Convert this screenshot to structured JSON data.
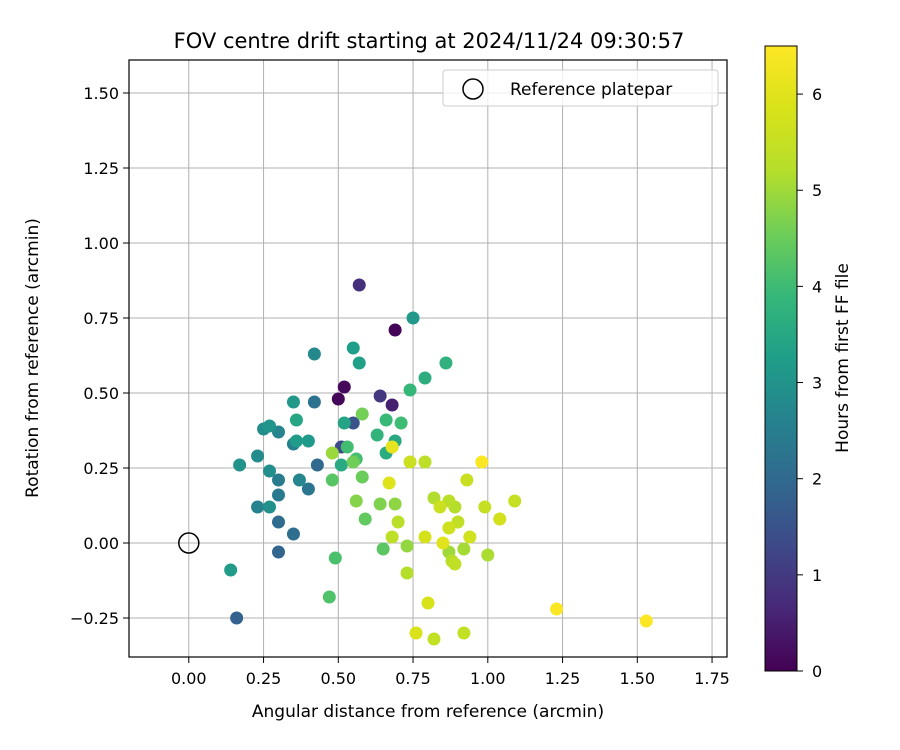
{
  "chart_data": {
    "type": "scatter",
    "title": "FOV centre drift starting at 2024/11/24 09:30:57",
    "xlabel": "Angular distance from reference (arcmin)",
    "ylabel": "Rotation from reference (arcmin)",
    "xlim": [
      -0.2,
      1.8
    ],
    "ylim": [
      -0.38,
      1.61
    ],
    "xticks": [
      0.0,
      0.25,
      0.5,
      0.75,
      1.0,
      1.25,
      1.5,
      1.75
    ],
    "xtick_labels": [
      "0.00",
      "0.25",
      "0.50",
      "0.75",
      "1.00",
      "1.25",
      "1.50",
      "1.75"
    ],
    "yticks": [
      -0.25,
      0.0,
      0.25,
      0.5,
      0.75,
      1.0,
      1.25,
      1.5
    ],
    "ytick_labels": [
      "−0.25",
      "0.00",
      "0.25",
      "0.50",
      "0.75",
      "1.00",
      "1.25",
      "1.50"
    ],
    "grid": true,
    "legend": {
      "position": "top-right",
      "entries": [
        "Reference platepar"
      ]
    },
    "reference_point": {
      "x": 0.0,
      "y": 0.0,
      "label": "Reference platepar"
    },
    "colorbar": {
      "label": "Hours from first FF file",
      "colormap": "viridis",
      "range": [
        0,
        6.5
      ],
      "ticks": [
        0,
        1,
        2,
        3,
        4,
        5,
        6
      ],
      "tick_labels": [
        "0",
        "1",
        "2",
        "3",
        "4",
        "5",
        "6"
      ]
    },
    "points": [
      {
        "x": 0.69,
        "y": 0.71,
        "c": 0.05
      },
      {
        "x": 0.5,
        "y": 0.48,
        "c": 0.08
      },
      {
        "x": 0.52,
        "y": 0.52,
        "c": 0.15
      },
      {
        "x": 0.68,
        "y": 0.46,
        "c": 0.5
      },
      {
        "x": 0.57,
        "y": 0.86,
        "c": 0.8
      },
      {
        "x": 0.64,
        "y": 0.49,
        "c": 0.95
      },
      {
        "x": 0.51,
        "y": 0.32,
        "c": 1.3
      },
      {
        "x": 0.55,
        "y": 0.4,
        "c": 1.5
      },
      {
        "x": 0.16,
        "y": -0.25,
        "c": 1.8
      },
      {
        "x": 0.3,
        "y": -0.03,
        "c": 1.9
      },
      {
        "x": 0.43,
        "y": 0.26,
        "c": 2.0
      },
      {
        "x": 0.3,
        "y": 0.07,
        "c": 2.05
      },
      {
        "x": 0.35,
        "y": 0.03,
        "c": 2.1
      },
      {
        "x": 0.42,
        "y": 0.47,
        "c": 2.2
      },
      {
        "x": 0.4,
        "y": 0.18,
        "c": 2.3
      },
      {
        "x": 0.3,
        "y": 0.16,
        "c": 2.4
      },
      {
        "x": 0.3,
        "y": 0.21,
        "c": 2.45
      },
      {
        "x": 0.35,
        "y": 0.33,
        "c": 2.55
      },
      {
        "x": 0.23,
        "y": 0.12,
        "c": 2.6
      },
      {
        "x": 0.3,
        "y": 0.37,
        "c": 2.65
      },
      {
        "x": 0.37,
        "y": 0.21,
        "c": 2.7
      },
      {
        "x": 0.42,
        "y": 0.63,
        "c": 2.75
      },
      {
        "x": 0.23,
        "y": 0.29,
        "c": 2.8
      },
      {
        "x": 0.25,
        "y": 0.38,
        "c": 2.85
      },
      {
        "x": 0.27,
        "y": 0.24,
        "c": 2.9
      },
      {
        "x": 0.27,
        "y": 0.12,
        "c": 2.95
      },
      {
        "x": 0.17,
        "y": 0.26,
        "c": 3.0
      },
      {
        "x": 0.27,
        "y": 0.39,
        "c": 3.05
      },
      {
        "x": 0.35,
        "y": 0.47,
        "c": 3.1
      },
      {
        "x": 0.4,
        "y": 0.34,
        "c": 3.15
      },
      {
        "x": 0.75,
        "y": 0.75,
        "c": 3.1
      },
      {
        "x": 0.36,
        "y": 0.34,
        "c": 3.2
      },
      {
        "x": 0.14,
        "y": -0.09,
        "c": 3.2
      },
      {
        "x": 0.55,
        "y": 0.65,
        "c": 3.25
      },
      {
        "x": 0.57,
        "y": 0.6,
        "c": 3.3
      },
      {
        "x": 0.52,
        "y": 0.4,
        "c": 3.4
      },
      {
        "x": 0.36,
        "y": 0.41,
        "c": 3.45
      },
      {
        "x": 0.69,
        "y": 0.34,
        "c": 3.5
      },
      {
        "x": 0.51,
        "y": 0.26,
        "c": 3.55
      },
      {
        "x": 0.66,
        "y": 0.3,
        "c": 3.6
      },
      {
        "x": 0.79,
        "y": 0.55,
        "c": 3.65
      },
      {
        "x": 0.86,
        "y": 0.6,
        "c": 3.75
      },
      {
        "x": 0.63,
        "y": 0.36,
        "c": 3.8
      },
      {
        "x": 0.74,
        "y": 0.51,
        "c": 3.9
      },
      {
        "x": 0.66,
        "y": 0.41,
        "c": 3.95
      },
      {
        "x": 0.71,
        "y": 0.4,
        "c": 4.0
      },
      {
        "x": 0.53,
        "y": 0.32,
        "c": 4.05
      },
      {
        "x": 0.56,
        "y": 0.28,
        "c": 4.1
      },
      {
        "x": 0.49,
        "y": -0.05,
        "c": 4.15
      },
      {
        "x": 0.47,
        "y": -0.18,
        "c": 4.2
      },
      {
        "x": 0.48,
        "y": 0.21,
        "c": 4.3
      },
      {
        "x": 0.65,
        "y": -0.02,
        "c": 4.35
      },
      {
        "x": 0.59,
        "y": 0.08,
        "c": 4.4
      },
      {
        "x": 0.58,
        "y": 0.22,
        "c": 4.5
      },
      {
        "x": 0.55,
        "y": 0.27,
        "c": 4.55
      },
      {
        "x": 0.58,
        "y": 0.43,
        "c": 4.6
      },
      {
        "x": 0.64,
        "y": 0.13,
        "c": 4.7
      },
      {
        "x": 0.56,
        "y": 0.14,
        "c": 4.75
      },
      {
        "x": 0.69,
        "y": 0.13,
        "c": 4.85
      },
      {
        "x": 0.73,
        "y": -0.01,
        "c": 4.9
      },
      {
        "x": 0.48,
        "y": 0.3,
        "c": 4.95
      },
      {
        "x": 0.87,
        "y": -0.03,
        "c": 5.0
      },
      {
        "x": 0.92,
        "y": -0.02,
        "c": 5.05
      },
      {
        "x": 1.0,
        "y": -0.04,
        "c": 5.1
      },
      {
        "x": 0.82,
        "y": 0.15,
        "c": 5.15
      },
      {
        "x": 0.89,
        "y": 0.12,
        "c": 5.2
      },
      {
        "x": 0.73,
        "y": -0.1,
        "c": 5.2
      },
      {
        "x": 0.88,
        "y": -0.06,
        "c": 5.25
      },
      {
        "x": 0.87,
        "y": 0.14,
        "c": 5.3
      },
      {
        "x": 0.7,
        "y": 0.07,
        "c": 5.3
      },
      {
        "x": 0.68,
        "y": 0.02,
        "c": 5.35
      },
      {
        "x": 0.79,
        "y": 0.27,
        "c": 5.35
      },
      {
        "x": 0.9,
        "y": 0.07,
        "c": 5.4
      },
      {
        "x": 0.89,
        "y": -0.07,
        "c": 5.4
      },
      {
        "x": 0.92,
        "y": -0.3,
        "c": 5.45
      },
      {
        "x": 0.82,
        "y": -0.32,
        "c": 5.45
      },
      {
        "x": 0.99,
        "y": 0.12,
        "c": 5.5
      },
      {
        "x": 1.09,
        "y": 0.14,
        "c": 5.5
      },
      {
        "x": 0.93,
        "y": 0.21,
        "c": 5.55
      },
      {
        "x": 0.74,
        "y": 0.27,
        "c": 5.6
      },
      {
        "x": 0.84,
        "y": 0.12,
        "c": 5.6
      },
      {
        "x": 0.87,
        "y": 0.05,
        "c": 5.65
      },
      {
        "x": 0.94,
        "y": 0.02,
        "c": 5.7
      },
      {
        "x": 1.04,
        "y": 0.08,
        "c": 5.75
      },
      {
        "x": 0.79,
        "y": 0.02,
        "c": 5.8
      },
      {
        "x": 0.8,
        "y": -0.2,
        "c": 5.85
      },
      {
        "x": 0.76,
        "y": -0.3,
        "c": 5.9
      },
      {
        "x": 0.67,
        "y": 0.2,
        "c": 5.95
      },
      {
        "x": 0.85,
        "y": 0.0,
        "c": 6.0
      },
      {
        "x": 0.68,
        "y": 0.32,
        "c": 6.1
      },
      {
        "x": 0.98,
        "y": 0.27,
        "c": 6.45
      },
      {
        "x": 1.23,
        "y": -0.22,
        "c": 6.45
      },
      {
        "x": 1.53,
        "y": -0.26,
        "c": 6.5
      }
    ]
  }
}
